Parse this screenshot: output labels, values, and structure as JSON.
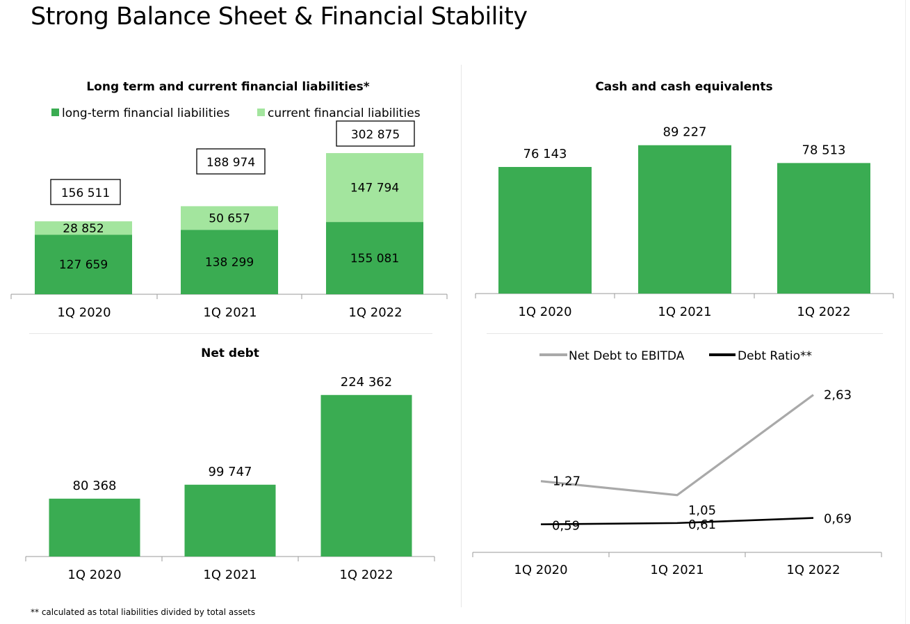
{
  "title": "Strong Balance Sheet & Financial Stability",
  "footnote": "** calculated as total liabilities divided by total assets",
  "colors": {
    "dark_green": "#3aac52",
    "light_green": "#a3e59e",
    "grey_line": "#a9a9a9",
    "black_line": "#000000"
  },
  "chart_data": [
    {
      "type": "bar",
      "stacked": true,
      "title": "Long term and current financial liabilities*",
      "categories": [
        "1Q 2020",
        "1Q 2021",
        "1Q 2022"
      ],
      "series": [
        {
          "name": "long-term financial liabilities",
          "values": [
            127659,
            138299,
            155081
          ],
          "labels": [
            "127 659",
            "138 299",
            "155 081"
          ]
        },
        {
          "name": "current financial liabilities",
          "values": [
            28852,
            50657,
            147794
          ],
          "labels": [
            "28 852",
            "50 657",
            "147 794"
          ]
        }
      ],
      "totals": [
        156511,
        188974,
        302875
      ],
      "total_labels": [
        "156 511",
        "188 974",
        "302 875"
      ],
      "legend_position": "top"
    },
    {
      "type": "bar",
      "title": "Cash and cash equivalents",
      "categories": [
        "1Q 2020",
        "1Q 2021",
        "1Q 2022"
      ],
      "values": [
        76143,
        89227,
        78513
      ],
      "labels": [
        "76 143",
        "89 227",
        "78 513"
      ]
    },
    {
      "type": "bar",
      "title": "Net debt",
      "categories": [
        "1Q 2020",
        "1Q 2021",
        "1Q 2022"
      ],
      "values": [
        80368,
        99747,
        224362
      ],
      "labels": [
        "80 368",
        "99 747",
        "224 362"
      ]
    },
    {
      "type": "line",
      "categories": [
        "1Q 2020",
        "1Q 2021",
        "1Q 2022"
      ],
      "series": [
        {
          "name": "Net Debt to EBITDA",
          "values": [
            1.27,
            1.05,
            2.63
          ],
          "labels": [
            "1,27",
            "1,05",
            "2,63"
          ]
        },
        {
          "name": "Debt Ratio**",
          "values": [
            0.59,
            0.61,
            0.69
          ],
          "labels": [
            "0,59",
            "0,61",
            "0,69"
          ]
        }
      ],
      "legend_position": "top"
    }
  ]
}
